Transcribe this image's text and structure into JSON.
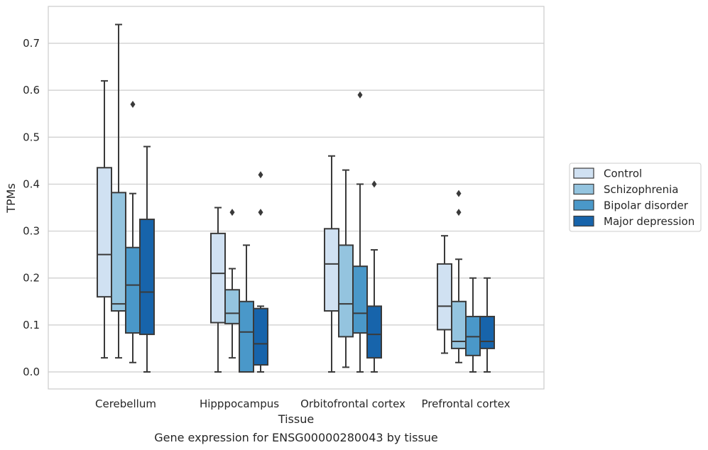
{
  "chart_data": {
    "type": "box",
    "caption": "Gene expression for ENSG00000280043 by tissue",
    "xlabel": "Tissue",
    "ylabel": "TPMs",
    "ylim": [
      -0.035,
      0.78
    ],
    "yticks": [
      0.0,
      0.1,
      0.2,
      0.3,
      0.4,
      0.5,
      0.6,
      0.7
    ],
    "ytick_labels": [
      "0.0",
      "0.1",
      "0.2",
      "0.3",
      "0.4",
      "0.5",
      "0.6",
      "0.7"
    ],
    "grid": "horizontal",
    "legend_position": "right",
    "categories": [
      "Cerebellum",
      "Hipppocampus",
      "Orbitofrontal cortex",
      "Prefrontal cortex"
    ],
    "series": [
      {
        "name": "Control",
        "color": "#d0e1f2",
        "boxes": [
          {
            "whislo": 0.03,
            "q1": 0.16,
            "med": 0.25,
            "q3": 0.435,
            "whishi": 0.62,
            "fliers": []
          },
          {
            "whislo": 0.0,
            "q1": 0.105,
            "med": 0.21,
            "q3": 0.295,
            "whishi": 0.35,
            "fliers": []
          },
          {
            "whislo": 0.0,
            "q1": 0.13,
            "med": 0.23,
            "q3": 0.305,
            "whishi": 0.46,
            "fliers": []
          },
          {
            "whislo": 0.04,
            "q1": 0.09,
            "med": 0.14,
            "q3": 0.23,
            "whishi": 0.29,
            "fliers": []
          }
        ]
      },
      {
        "name": "Schizophrenia",
        "color": "#94c4df",
        "boxes": [
          {
            "whislo": 0.03,
            "q1": 0.13,
            "med": 0.145,
            "q3": 0.382,
            "whishi": 0.74,
            "fliers": []
          },
          {
            "whislo": 0.03,
            "q1": 0.103,
            "med": 0.125,
            "q3": 0.175,
            "whishi": 0.22,
            "fliers": [
              0.34
            ]
          },
          {
            "whislo": 0.01,
            "q1": 0.075,
            "med": 0.145,
            "q3": 0.27,
            "whishi": 0.43,
            "fliers": []
          },
          {
            "whislo": 0.02,
            "q1": 0.05,
            "med": 0.065,
            "q3": 0.15,
            "whishi": 0.24,
            "fliers": [
              0.34,
              0.38
            ]
          }
        ]
      },
      {
        "name": "Bipolar disorder",
        "color": "#4a98c9",
        "boxes": [
          {
            "whislo": 0.02,
            "q1": 0.083,
            "med": 0.185,
            "q3": 0.265,
            "whishi": 0.38,
            "fliers": [
              0.57
            ]
          },
          {
            "whislo": 0.0,
            "q1": 0.0,
            "med": 0.085,
            "q3": 0.15,
            "whishi": 0.27,
            "fliers": []
          },
          {
            "whislo": 0.0,
            "q1": 0.083,
            "med": 0.125,
            "q3": 0.225,
            "whishi": 0.4,
            "fliers": [
              0.59
            ]
          },
          {
            "whislo": 0.0,
            "q1": 0.035,
            "med": 0.075,
            "q3": 0.118,
            "whishi": 0.2,
            "fliers": []
          }
        ]
      },
      {
        "name": "Major depression",
        "color": "#1764ab",
        "boxes": [
          {
            "whislo": 0.0,
            "q1": 0.08,
            "med": 0.17,
            "q3": 0.325,
            "whishi": 0.48,
            "fliers": []
          },
          {
            "whislo": 0.0,
            "q1": 0.015,
            "med": 0.06,
            "q3": 0.135,
            "whishi": 0.14,
            "fliers": [
              0.34,
              0.42
            ]
          },
          {
            "whislo": 0.0,
            "q1": 0.03,
            "med": 0.08,
            "q3": 0.14,
            "whishi": 0.26,
            "fliers": [
              0.4
            ]
          },
          {
            "whislo": 0.0,
            "q1": 0.05,
            "med": 0.065,
            "q3": 0.118,
            "whishi": 0.2,
            "fliers": []
          }
        ]
      }
    ]
  }
}
